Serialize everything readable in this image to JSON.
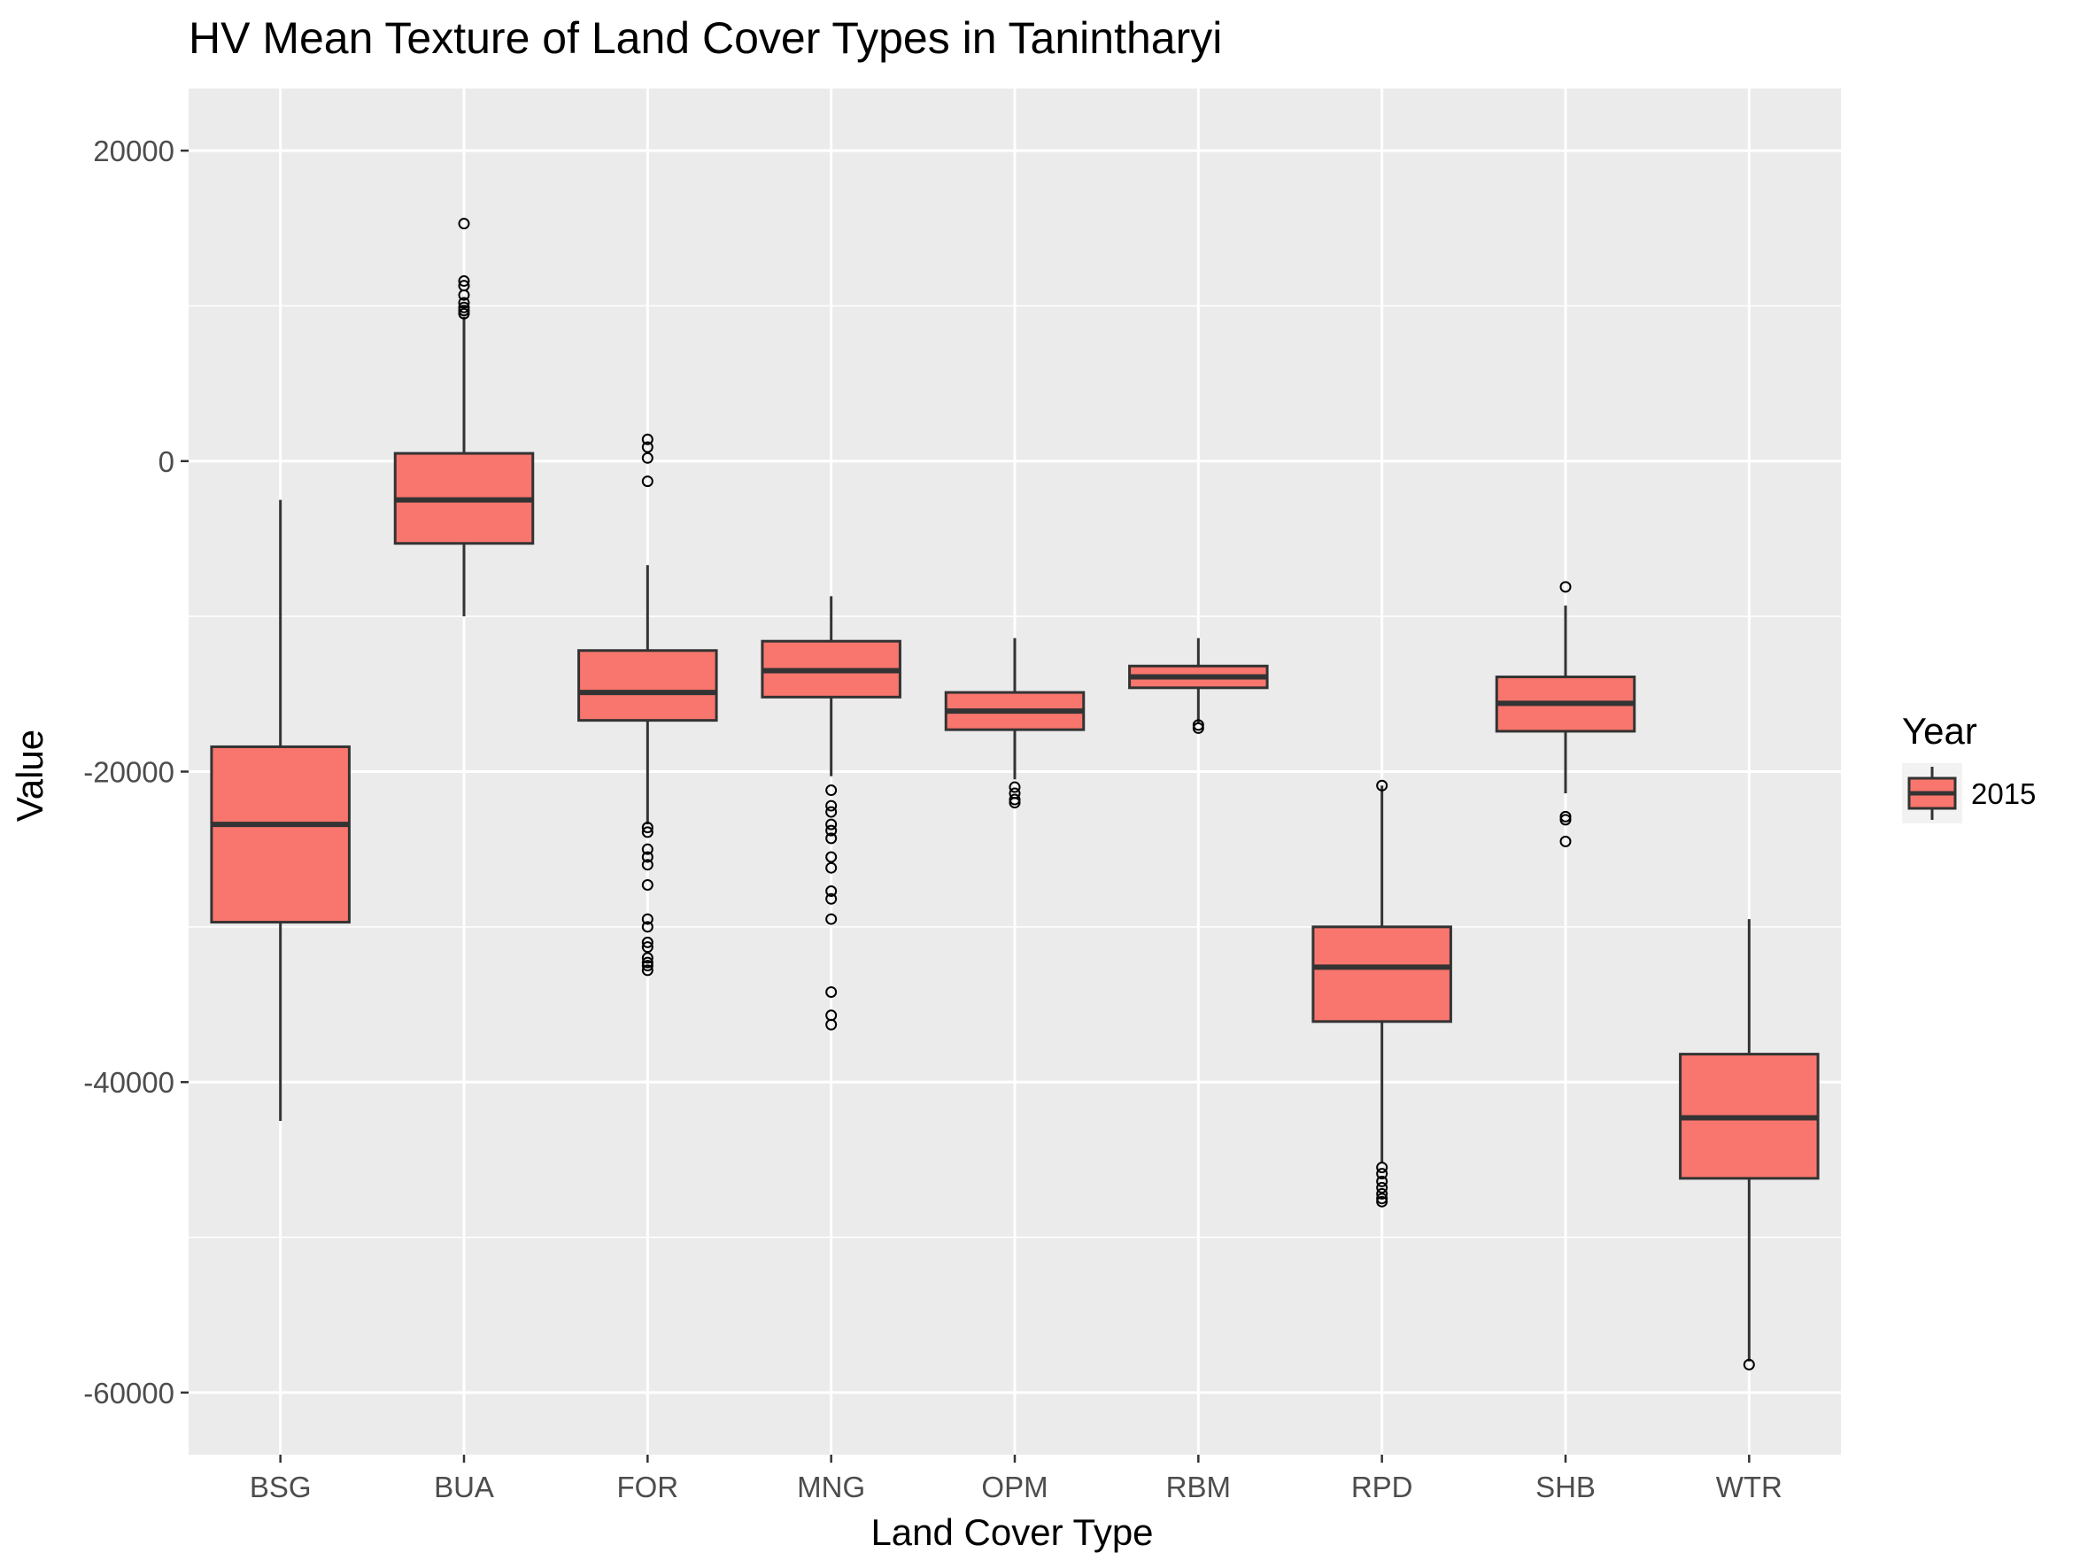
{
  "chart_data": {
    "type": "boxplot",
    "title": "HV Mean Texture of Land Cover Types in Tanintharyi",
    "xlabel": "Land Cover Type",
    "ylabel": "Value",
    "ylim": [
      -64000,
      24000
    ],
    "yticks": [
      20000,
      0,
      -20000,
      -40000,
      -60000
    ],
    "ytick_labels": [
      "20000",
      "0",
      "-20000",
      "-40000",
      "-60000"
    ],
    "grid": true,
    "legend": {
      "title": "Year",
      "position": "right",
      "entries": [
        "2015"
      ]
    },
    "fill_color": "#F8766D",
    "panel_color": "#EBEBEB",
    "categories": [
      "BSG",
      "BUA",
      "FOR",
      "MNG",
      "OPM",
      "RBM",
      "RPD",
      "SHB",
      "WTR"
    ],
    "series": [
      {
        "name": "2015",
        "boxes": [
          {
            "category": "BSG",
            "whisker_low": -42500,
            "q1": -29700,
            "median": -23400,
            "q3": -18400,
            "whisker_high": -2500,
            "outliers": []
          },
          {
            "category": "BUA",
            "whisker_low": -10000,
            "q1": -5300,
            "median": -2500,
            "q3": 500,
            "whisker_high": 9300,
            "outliers": [
              15300,
              11600,
              11300,
              10700,
              10200,
              9900,
              9700,
              9500
            ]
          },
          {
            "category": "FOR",
            "whisker_low": -23400,
            "q1": -16700,
            "median": -14900,
            "q3": -12200,
            "whisker_high": -6700,
            "outliers": [
              1400,
              900,
              200,
              -1300,
              -23600,
              -23900,
              -25000,
              -25500,
              -26000,
              -27300,
              -29500,
              -30000,
              -31000,
              -31300,
              -32000,
              -32300,
              -32500,
              -32800
            ]
          },
          {
            "category": "MNG",
            "whisker_low": -20300,
            "q1": -15200,
            "median": -13500,
            "q3": -11600,
            "whisker_high": -8700,
            "outliers": [
              -21200,
              -22200,
              -22600,
              -23400,
              -23800,
              -24300,
              -25500,
              -26200,
              -27700,
              -28200,
              -29500,
              -34200,
              -35700,
              -36300
            ]
          },
          {
            "category": "OPM",
            "whisker_low": -20500,
            "q1": -17300,
            "median": -16100,
            "q3": -14900,
            "whisker_high": -11400,
            "outliers": [
              -21000,
              -21400,
              -21800,
              -22000
            ]
          },
          {
            "category": "RBM",
            "whisker_low": -16900,
            "q1": -14600,
            "median": -13900,
            "q3": -13200,
            "whisker_high": -11400,
            "outliers": [
              -17000,
              -17200
            ]
          },
          {
            "category": "RPD",
            "whisker_low": -45200,
            "q1": -36100,
            "median": -32600,
            "q3": -30000,
            "whisker_high": -20900,
            "outliers": [
              -20900,
              -45500,
              -45900,
              -46400,
              -46800,
              -47200,
              -47500,
              -47700
            ]
          },
          {
            "category": "SHB",
            "whisker_low": -21400,
            "q1": -17400,
            "median": -15600,
            "q3": -13900,
            "whisker_high": -9300,
            "outliers": [
              -8100,
              -22900,
              -23100,
              -24500
            ]
          },
          {
            "category": "WTR",
            "whisker_low": -58000,
            "q1": -46200,
            "median": -42300,
            "q3": -38200,
            "whisker_high": -29500,
            "outliers": [
              -58200
            ]
          }
        ]
      }
    ]
  }
}
